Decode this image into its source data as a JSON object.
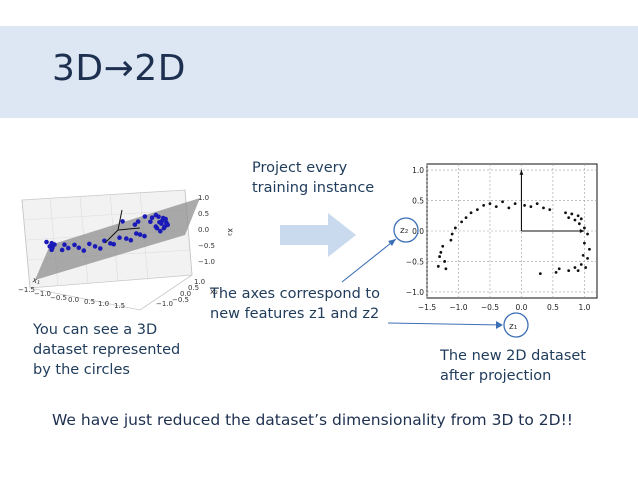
{
  "title": "3D→2D",
  "captions": {
    "left": "You can see a 3D\ndataset represented\nby the circles",
    "top": "Project every\ntraining instance",
    "middle": "The axes correspond to\nnew features z1 and z2",
    "right": "The new 2D dataset\nafter projection",
    "bottom": "We have just reduced the dataset’s dimensionality from 3D to 2D!!"
  },
  "colors": {
    "title_band": "#dde7f3",
    "arrow": "#c9d9ee",
    "plane": "#8f8f8f",
    "points_3d": "#1a1ab8",
    "annotation": "#3d6fb6"
  },
  "fig3d": {
    "x_ticks": [
      "−1.5",
      "−1.0",
      "−0.5",
      "0.0",
      "0.5",
      "1.0",
      "1.5"
    ],
    "y_ticks": [
      "−1.0",
      "−0.5",
      "0.0",
      "0.5",
      "1.0"
    ],
    "z_ticks": [
      "1.0",
      "0.5",
      "0.0",
      "−0.5",
      "−1.0"
    ],
    "xlabel": "x₁",
    "ylabel": "x₂",
    "zlabel": "x₃"
  },
  "chart_data": {
    "type": "scatter",
    "x_ticks": [
      "−1.5",
      "−1.0",
      "−0.5",
      "0.0",
      "0.5",
      "1.0"
    ],
    "y_ticks": [
      "1.0",
      "0.5",
      "0.0",
      "−0.5",
      "−1.0"
    ],
    "xlim": [
      -1.5,
      1.2
    ],
    "ylim": [
      -1.1,
      1.1
    ],
    "grid": true,
    "xlabel": "z₁",
    "ylabel": "z₂",
    "points": [
      [
        -1.25,
        -0.25
      ],
      [
        -1.3,
        -0.42
      ],
      [
        -1.22,
        -0.5
      ],
      [
        -1.32,
        -0.58
      ],
      [
        -1.2,
        -0.62
      ],
      [
        -1.28,
        -0.35
      ],
      [
        -1.1,
        -0.05
      ],
      [
        -1.05,
        0.05
      ],
      [
        -1.12,
        -0.15
      ],
      [
        -0.95,
        0.15
      ],
      [
        -0.88,
        0.22
      ],
      [
        -0.8,
        0.3
      ],
      [
        -0.7,
        0.35
      ],
      [
        -0.6,
        0.42
      ],
      [
        -0.5,
        0.45
      ],
      [
        -0.4,
        0.4
      ],
      [
        -0.3,
        0.48
      ],
      [
        -0.2,
        0.38
      ],
      [
        -0.1,
        0.45
      ],
      [
        0.05,
        0.42
      ],
      [
        0.15,
        0.4
      ],
      [
        0.25,
        0.45
      ],
      [
        0.35,
        0.38
      ],
      [
        0.45,
        0.35
      ],
      [
        0.7,
        0.3
      ],
      [
        0.75,
        0.22
      ],
      [
        0.8,
        0.28
      ],
      [
        0.85,
        0.18
      ],
      [
        0.9,
        0.25
      ],
      [
        0.92,
        0.12
      ],
      [
        0.95,
        0.2
      ],
      [
        1.0,
        0.05
      ],
      [
        1.05,
        -0.05
      ],
      [
        1.0,
        -0.2
      ],
      [
        1.08,
        -0.3
      ],
      [
        1.05,
        -0.45
      ],
      [
        0.95,
        -0.55
      ],
      [
        0.9,
        -0.65
      ],
      [
        0.85,
        -0.6
      ],
      [
        0.75,
        -0.65
      ],
      [
        0.6,
        -0.62
      ],
      [
        0.55,
        -0.68
      ],
      [
        0.3,
        -0.7
      ],
      [
        1.02,
        -0.6
      ],
      [
        0.98,
        -0.4
      ]
    ],
    "arrows": [
      {
        "from": [
          0,
          0
        ],
        "to": [
          0,
          1
        ]
      },
      {
        "from": [
          0,
          0
        ],
        "to": [
          1,
          0
        ]
      }
    ]
  }
}
